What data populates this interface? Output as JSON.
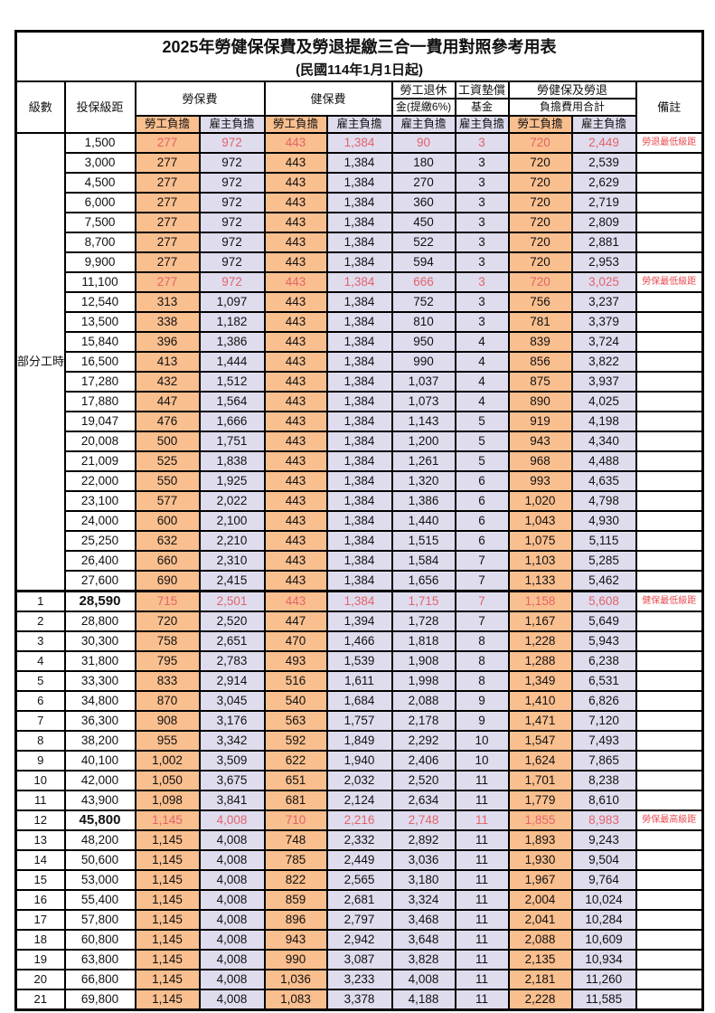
{
  "title": "2025年勞健保保費及勞退提繳三合一費用對照參考用表",
  "subtitle": "(民國114年1月1日起)",
  "colors": {
    "worker_bg": "#FABF8F",
    "employer_bg": "#DFDCEE",
    "highlight_value_text": "#E2636B",
    "remark_text": "#E94B51",
    "border": "#000000"
  },
  "header": {
    "level": "級數",
    "bracket": "投保級距",
    "labor_group": "勞保費",
    "health_group": "健保費",
    "pension_line1": "勞工退休",
    "pension_line2": "金(提繳6%)",
    "wage_fund_line1": "工資墊償",
    "wage_fund_line2": "基金",
    "total_line1": "勞健保及勞退",
    "total_line2": "負擔費用合計",
    "remark": "備註",
    "worker": "勞工負擔",
    "employer": "雇主負擔"
  },
  "part_time": {
    "label": "部分工時",
    "rowspan": 23
  },
  "rows": [
    {
      "level": "",
      "bracket": "1,500",
      "v": [
        "277",
        "972",
        "443",
        "1,384",
        "90",
        "3",
        "720",
        "2,449"
      ],
      "remark": "勞退最低級距",
      "red": true,
      "bold": false,
      "sep": false
    },
    {
      "level": "",
      "bracket": "3,000",
      "v": [
        "277",
        "972",
        "443",
        "1,384",
        "180",
        "3",
        "720",
        "2,539"
      ],
      "remark": "",
      "red": false,
      "bold": false,
      "sep": false
    },
    {
      "level": "",
      "bracket": "4,500",
      "v": [
        "277",
        "972",
        "443",
        "1,384",
        "270",
        "3",
        "720",
        "2,629"
      ],
      "remark": "",
      "red": false,
      "bold": false,
      "sep": false
    },
    {
      "level": "",
      "bracket": "6,000",
      "v": [
        "277",
        "972",
        "443",
        "1,384",
        "360",
        "3",
        "720",
        "2,719"
      ],
      "remark": "",
      "red": false,
      "bold": false,
      "sep": false
    },
    {
      "level": "",
      "bracket": "7,500",
      "v": [
        "277",
        "972",
        "443",
        "1,384",
        "450",
        "3",
        "720",
        "2,809"
      ],
      "remark": "",
      "red": false,
      "bold": false,
      "sep": false
    },
    {
      "level": "",
      "bracket": "8,700",
      "v": [
        "277",
        "972",
        "443",
        "1,384",
        "522",
        "3",
        "720",
        "2,881"
      ],
      "remark": "",
      "red": false,
      "bold": false,
      "sep": false
    },
    {
      "level": "",
      "bracket": "9,900",
      "v": [
        "277",
        "972",
        "443",
        "1,384",
        "594",
        "3",
        "720",
        "2,953"
      ],
      "remark": "",
      "red": false,
      "bold": false,
      "sep": false
    },
    {
      "level": "",
      "bracket": "11,100",
      "v": [
        "277",
        "972",
        "443",
        "1,384",
        "666",
        "3",
        "720",
        "3,025"
      ],
      "remark": "勞保最低級距",
      "red": true,
      "bold": false,
      "sep": false
    },
    {
      "level": "",
      "bracket": "12,540",
      "v": [
        "313",
        "1,097",
        "443",
        "1,384",
        "752",
        "3",
        "756",
        "3,237"
      ],
      "remark": "",
      "red": false,
      "bold": false,
      "sep": false
    },
    {
      "level": "",
      "bracket": "13,500",
      "v": [
        "338",
        "1,182",
        "443",
        "1,384",
        "810",
        "3",
        "781",
        "3,379"
      ],
      "remark": "",
      "red": false,
      "bold": false,
      "sep": false
    },
    {
      "level": "",
      "bracket": "15,840",
      "v": [
        "396",
        "1,386",
        "443",
        "1,384",
        "950",
        "4",
        "839",
        "3,724"
      ],
      "remark": "",
      "red": false,
      "bold": false,
      "sep": false
    },
    {
      "level": "",
      "bracket": "16,500",
      "v": [
        "413",
        "1,444",
        "443",
        "1,384",
        "990",
        "4",
        "856",
        "3,822"
      ],
      "remark": "",
      "red": false,
      "bold": false,
      "sep": false
    },
    {
      "level": "",
      "bracket": "17,280",
      "v": [
        "432",
        "1,512",
        "443",
        "1,384",
        "1,037",
        "4",
        "875",
        "3,937"
      ],
      "remark": "",
      "red": false,
      "bold": false,
      "sep": false
    },
    {
      "level": "",
      "bracket": "17,880",
      "v": [
        "447",
        "1,564",
        "443",
        "1,384",
        "1,073",
        "4",
        "890",
        "4,025"
      ],
      "remark": "",
      "red": false,
      "bold": false,
      "sep": false
    },
    {
      "level": "",
      "bracket": "19,047",
      "v": [
        "476",
        "1,666",
        "443",
        "1,384",
        "1,143",
        "5",
        "919",
        "4,198"
      ],
      "remark": "",
      "red": false,
      "bold": false,
      "sep": false
    },
    {
      "level": "",
      "bracket": "20,008",
      "v": [
        "500",
        "1,751",
        "443",
        "1,384",
        "1,200",
        "5",
        "943",
        "4,340"
      ],
      "remark": "",
      "red": false,
      "bold": false,
      "sep": false
    },
    {
      "level": "",
      "bracket": "21,009",
      "v": [
        "525",
        "1,838",
        "443",
        "1,384",
        "1,261",
        "5",
        "968",
        "4,488"
      ],
      "remark": "",
      "red": false,
      "bold": false,
      "sep": false
    },
    {
      "level": "",
      "bracket": "22,000",
      "v": [
        "550",
        "1,925",
        "443",
        "1,384",
        "1,320",
        "6",
        "993",
        "4,635"
      ],
      "remark": "",
      "red": false,
      "bold": false,
      "sep": false
    },
    {
      "level": "",
      "bracket": "23,100",
      "v": [
        "577",
        "2,022",
        "443",
        "1,384",
        "1,386",
        "6",
        "1,020",
        "4,798"
      ],
      "remark": "",
      "red": false,
      "bold": false,
      "sep": false
    },
    {
      "level": "",
      "bracket": "24,000",
      "v": [
        "600",
        "2,100",
        "443",
        "1,384",
        "1,440",
        "6",
        "1,043",
        "4,930"
      ],
      "remark": "",
      "red": false,
      "bold": false,
      "sep": false
    },
    {
      "level": "",
      "bracket": "25,250",
      "v": [
        "632",
        "2,210",
        "443",
        "1,384",
        "1,515",
        "6",
        "1,075",
        "5,115"
      ],
      "remark": "",
      "red": false,
      "bold": false,
      "sep": false
    },
    {
      "level": "",
      "bracket": "26,400",
      "v": [
        "660",
        "2,310",
        "443",
        "1,384",
        "1,584",
        "7",
        "1,103",
        "5,285"
      ],
      "remark": "",
      "red": false,
      "bold": false,
      "sep": false
    },
    {
      "level": "",
      "bracket": "27,600",
      "v": [
        "690",
        "2,415",
        "443",
        "1,384",
        "1,656",
        "7",
        "1,133",
        "5,462"
      ],
      "remark": "",
      "red": false,
      "bold": false,
      "sep": false
    },
    {
      "level": "1",
      "bracket": "28,590",
      "v": [
        "715",
        "2,501",
        "443",
        "1,384",
        "1,715",
        "7",
        "1,158",
        "5,608"
      ],
      "remark": "健保最低級距",
      "red": true,
      "bold": true,
      "sep": true
    },
    {
      "level": "2",
      "bracket": "28,800",
      "v": [
        "720",
        "2,520",
        "447",
        "1,394",
        "1,728",
        "7",
        "1,167",
        "5,649"
      ],
      "remark": "",
      "red": false,
      "bold": false,
      "sep": false
    },
    {
      "level": "3",
      "bracket": "30,300",
      "v": [
        "758",
        "2,651",
        "470",
        "1,466",
        "1,818",
        "8",
        "1,228",
        "5,943"
      ],
      "remark": "",
      "red": false,
      "bold": false,
      "sep": false
    },
    {
      "level": "4",
      "bracket": "31,800",
      "v": [
        "795",
        "2,783",
        "493",
        "1,539",
        "1,908",
        "8",
        "1,288",
        "6,238"
      ],
      "remark": "",
      "red": false,
      "bold": false,
      "sep": false
    },
    {
      "level": "5",
      "bracket": "33,300",
      "v": [
        "833",
        "2,914",
        "516",
        "1,611",
        "1,998",
        "8",
        "1,349",
        "6,531"
      ],
      "remark": "",
      "red": false,
      "bold": false,
      "sep": false
    },
    {
      "level": "6",
      "bracket": "34,800",
      "v": [
        "870",
        "3,045",
        "540",
        "1,684",
        "2,088",
        "9",
        "1,410",
        "6,826"
      ],
      "remark": "",
      "red": false,
      "bold": false,
      "sep": false
    },
    {
      "level": "7",
      "bracket": "36,300",
      "v": [
        "908",
        "3,176",
        "563",
        "1,757",
        "2,178",
        "9",
        "1,471",
        "7,120"
      ],
      "remark": "",
      "red": false,
      "bold": false,
      "sep": false
    },
    {
      "level": "8",
      "bracket": "38,200",
      "v": [
        "955",
        "3,342",
        "592",
        "1,849",
        "2,292",
        "10",
        "1,547",
        "7,493"
      ],
      "remark": "",
      "red": false,
      "bold": false,
      "sep": false
    },
    {
      "level": "9",
      "bracket": "40,100",
      "v": [
        "1,002",
        "3,509",
        "622",
        "1,940",
        "2,406",
        "10",
        "1,624",
        "7,865"
      ],
      "remark": "",
      "red": false,
      "bold": false,
      "sep": false
    },
    {
      "level": "10",
      "bracket": "42,000",
      "v": [
        "1,050",
        "3,675",
        "651",
        "2,032",
        "2,520",
        "11",
        "1,701",
        "8,238"
      ],
      "remark": "",
      "red": false,
      "bold": false,
      "sep": false
    },
    {
      "level": "11",
      "bracket": "43,900",
      "v": [
        "1,098",
        "3,841",
        "681",
        "2,124",
        "2,634",
        "11",
        "1,779",
        "8,610"
      ],
      "remark": "",
      "red": false,
      "bold": false,
      "sep": false
    },
    {
      "level": "12",
      "bracket": "45,800",
      "v": [
        "1,145",
        "4,008",
        "710",
        "2,216",
        "2,748",
        "11",
        "1,855",
        "8,983"
      ],
      "remark": "勞保最高級距",
      "red": true,
      "bold": true,
      "sep": false
    },
    {
      "level": "13",
      "bracket": "48,200",
      "v": [
        "1,145",
        "4,008",
        "748",
        "2,332",
        "2,892",
        "11",
        "1,893",
        "9,243"
      ],
      "remark": "",
      "red": false,
      "bold": false,
      "sep": false
    },
    {
      "level": "14",
      "bracket": "50,600",
      "v": [
        "1,145",
        "4,008",
        "785",
        "2,449",
        "3,036",
        "11",
        "1,930",
        "9,504"
      ],
      "remark": "",
      "red": false,
      "bold": false,
      "sep": false
    },
    {
      "level": "15",
      "bracket": "53,000",
      "v": [
        "1,145",
        "4,008",
        "822",
        "2,565",
        "3,180",
        "11",
        "1,967",
        "9,764"
      ],
      "remark": "",
      "red": false,
      "bold": false,
      "sep": false
    },
    {
      "level": "16",
      "bracket": "55,400",
      "v": [
        "1,145",
        "4,008",
        "859",
        "2,681",
        "3,324",
        "11",
        "2,004",
        "10,024"
      ],
      "remark": "",
      "red": false,
      "bold": false,
      "sep": false
    },
    {
      "level": "17",
      "bracket": "57,800",
      "v": [
        "1,145",
        "4,008",
        "896",
        "2,797",
        "3,468",
        "11",
        "2,041",
        "10,284"
      ],
      "remark": "",
      "red": false,
      "bold": false,
      "sep": false
    },
    {
      "level": "18",
      "bracket": "60,800",
      "v": [
        "1,145",
        "4,008",
        "943",
        "2,942",
        "3,648",
        "11",
        "2,088",
        "10,609"
      ],
      "remark": "",
      "red": false,
      "bold": false,
      "sep": false
    },
    {
      "level": "19",
      "bracket": "63,800",
      "v": [
        "1,145",
        "4,008",
        "990",
        "3,087",
        "3,828",
        "11",
        "2,135",
        "10,934"
      ],
      "remark": "",
      "red": false,
      "bold": false,
      "sep": false
    },
    {
      "level": "20",
      "bracket": "66,800",
      "v": [
        "1,145",
        "4,008",
        "1,036",
        "3,233",
        "4,008",
        "11",
        "2,181",
        "11,260"
      ],
      "remark": "",
      "red": false,
      "bold": false,
      "sep": false
    },
    {
      "level": "21",
      "bracket": "69,800",
      "v": [
        "1,145",
        "4,008",
        "1,083",
        "3,378",
        "4,188",
        "11",
        "2,228",
        "11,585"
      ],
      "remark": "",
      "red": false,
      "bold": false,
      "sep": false
    }
  ],
  "column_semantics": [
    "labor-worker",
    "labor-employer",
    "health-worker",
    "health-employer",
    "pension-employer",
    "wagefund-employer",
    "total-worker",
    "total-employer"
  ]
}
